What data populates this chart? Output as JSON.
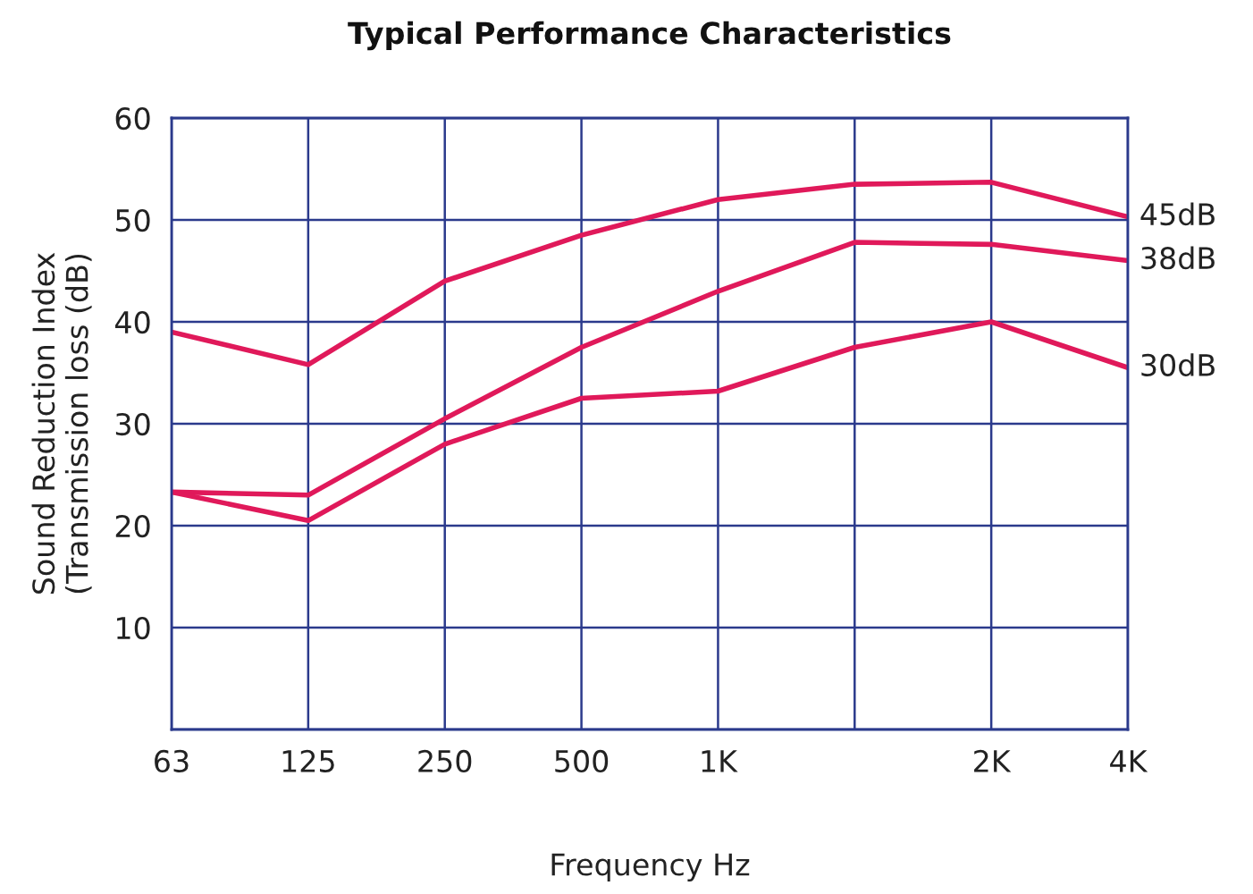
{
  "chart_data": {
    "type": "line",
    "title": "Typical Performance Characteristics",
    "xlabel": "Frequency Hz",
    "ylabel": "Sound Reduction Index\n(Transmission loss (dB)",
    "categories": [
      "63",
      "125",
      "250",
      "500",
      "1K",
      null,
      "2K",
      "4K"
    ],
    "ylim": [
      0,
      60
    ],
    "yticks": [
      {
        "value": 0,
        "label": null
      },
      10,
      20,
      30,
      40,
      50,
      60
    ],
    "grid": true,
    "legend": false,
    "marker": "none",
    "line_style": "solid",
    "series": [
      {
        "name": "45dB",
        "color": "#e0195a",
        "values": [
          39,
          35.8,
          44,
          48.5,
          52,
          53.5,
          53.7,
          50.3
        ]
      },
      {
        "name": "38dB",
        "color": "#e0195a",
        "values": [
          23.3,
          23,
          30.5,
          37.5,
          43,
          47.8,
          47.6,
          46
        ]
      },
      {
        "name": "30dB",
        "color": "#e0195a",
        "values": [
          23.3,
          20.5,
          28,
          32.5,
          33.2,
          37.5,
          40,
          35.5
        ]
      }
    ]
  }
}
